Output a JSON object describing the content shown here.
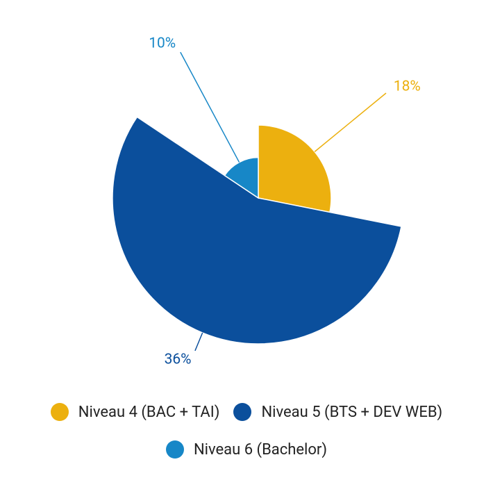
{
  "chart_data": {
    "type": "pie",
    "categories": [
      "Niveau 4 (BAC + TAI)",
      "Niveau 5 (BTS + DEV WEB)",
      "Niveau 6 (Bachelor)"
    ],
    "values": [
      18,
      36,
      10
    ],
    "value_labels": [
      "18%",
      "36%",
      "10%"
    ],
    "colors": [
      "#ecb00f",
      "#0b4f9c",
      "#1787c7"
    ]
  }
}
